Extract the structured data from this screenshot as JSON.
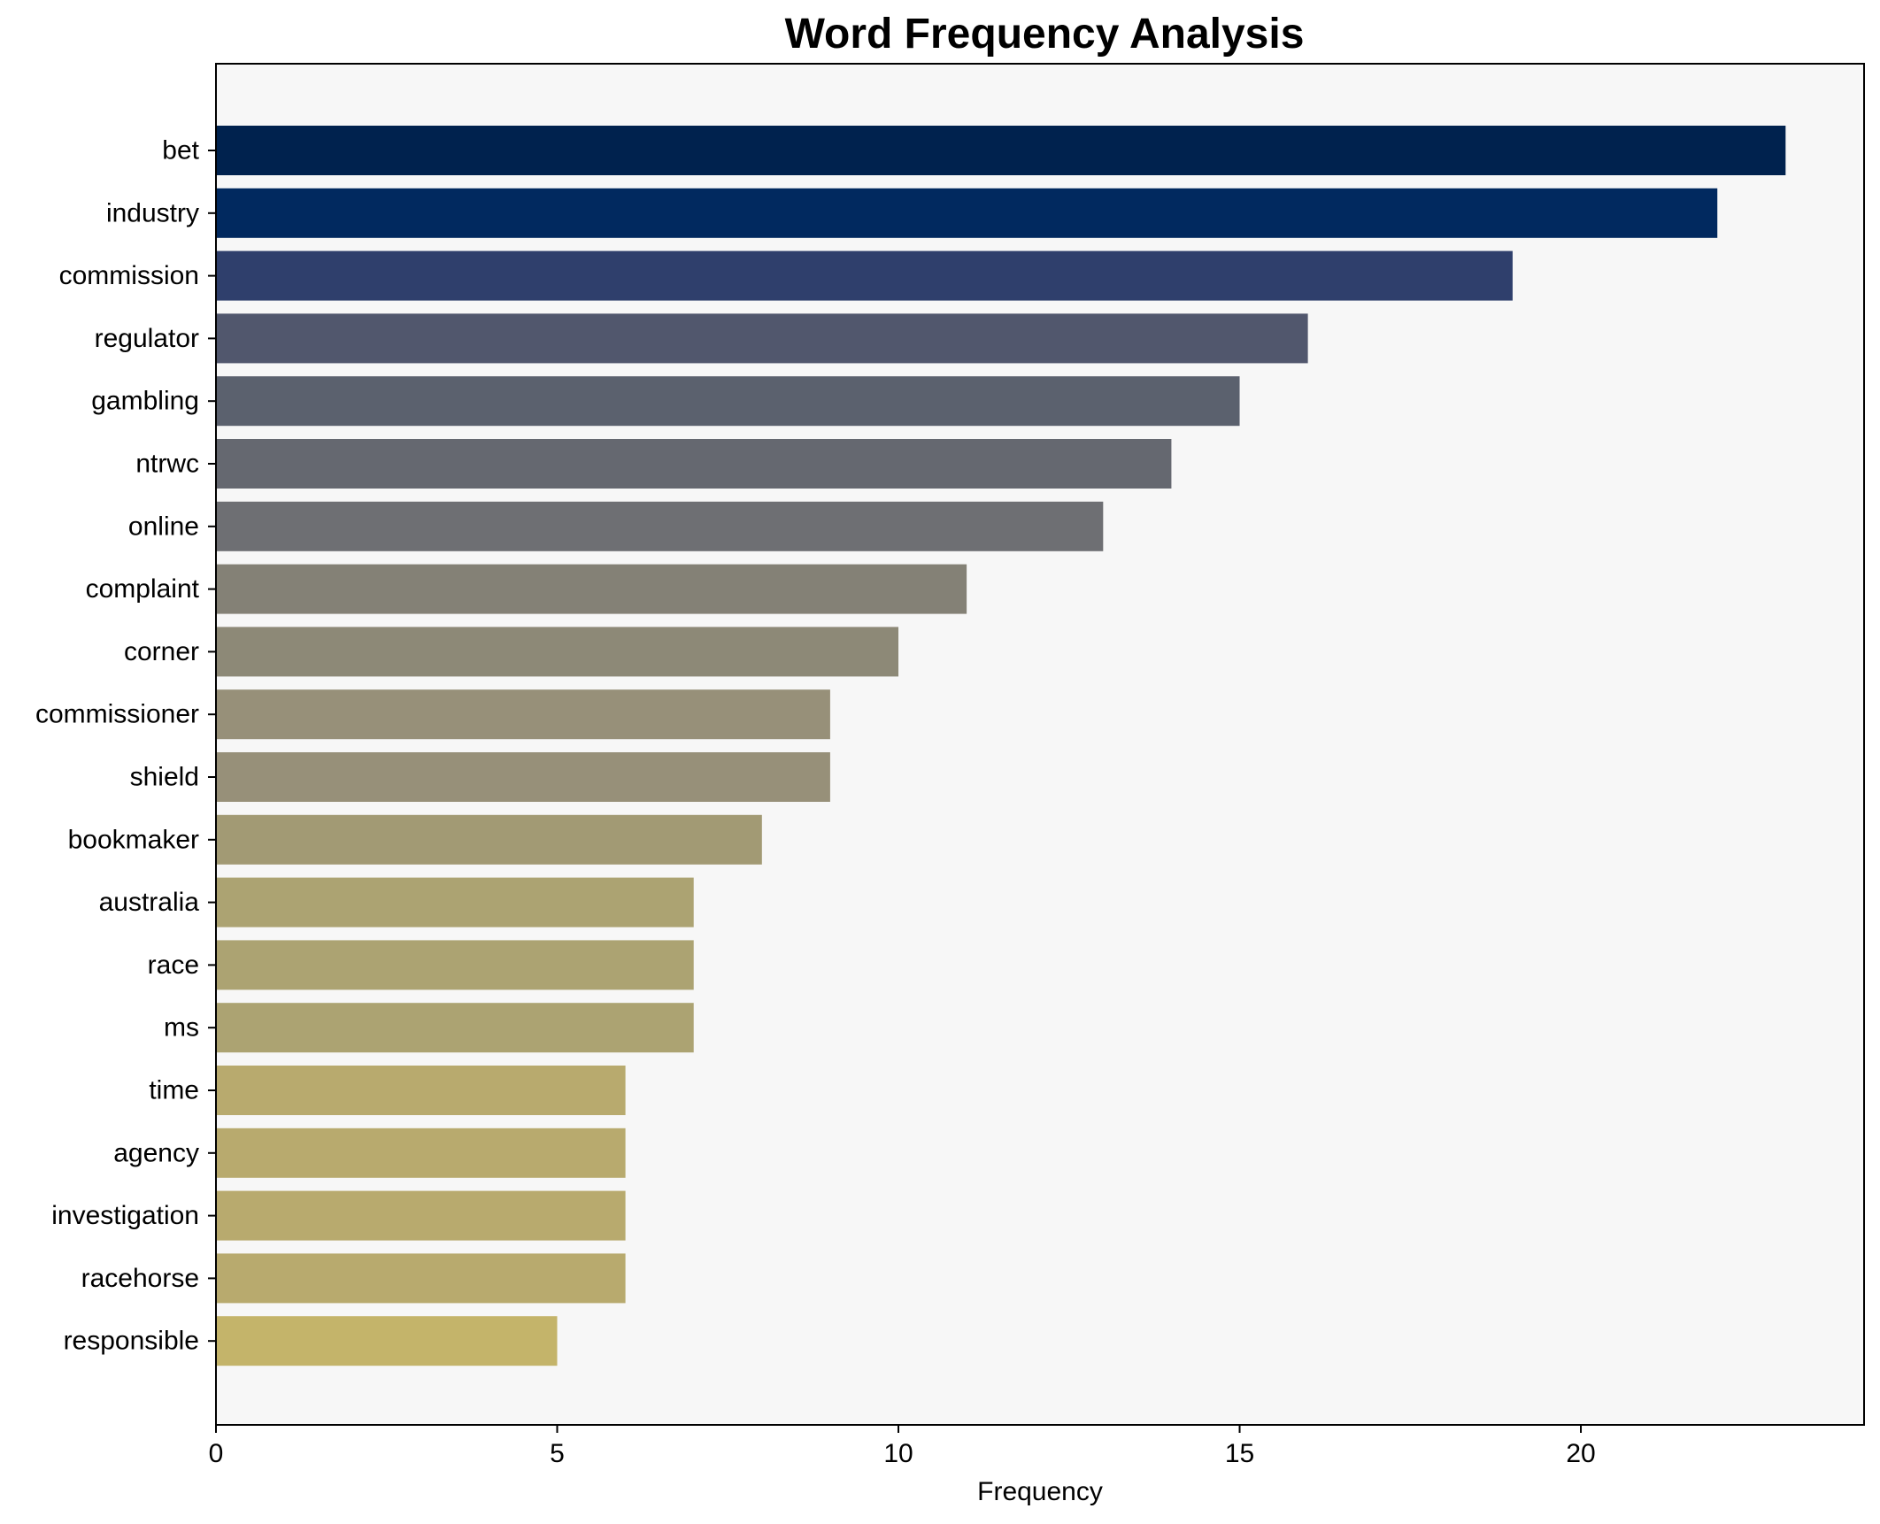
{
  "chart_data": {
    "type": "bar",
    "orientation": "horizontal",
    "title": "Word Frequency Analysis",
    "xlabel": "Frequency",
    "ylabel": "",
    "xlim": [
      0,
      24.15
    ],
    "xticks": [
      0,
      5,
      10,
      15,
      20
    ],
    "grid": false,
    "legend": "none",
    "background_color": "#f7f7f7",
    "categories": [
      "bet",
      "industry",
      "commission",
      "regulator",
      "gambling",
      "ntrwc",
      "online",
      "complaint",
      "corner",
      "commissioner",
      "shield",
      "bookmaker",
      "australia",
      "race",
      "ms",
      "time",
      "agency",
      "investigation",
      "racehorse",
      "responsible"
    ],
    "values": [
      23,
      22,
      19,
      16,
      15,
      14,
      13,
      11,
      10,
      9,
      9,
      8,
      7,
      7,
      7,
      6,
      6,
      6,
      6,
      5
    ],
    "colors": [
      "#00224e",
      "#01295f",
      "#2f3f6c",
      "#51576d",
      "#5b616e",
      "#656870",
      "#6e6f73",
      "#848176",
      "#8d8977",
      "#979079",
      "#979079",
      "#a29a74",
      "#aca372",
      "#aca372",
      "#aca372",
      "#b8aa6e",
      "#b8aa6e",
      "#b8aa6e",
      "#b8aa6e",
      "#c4b46a"
    ]
  }
}
